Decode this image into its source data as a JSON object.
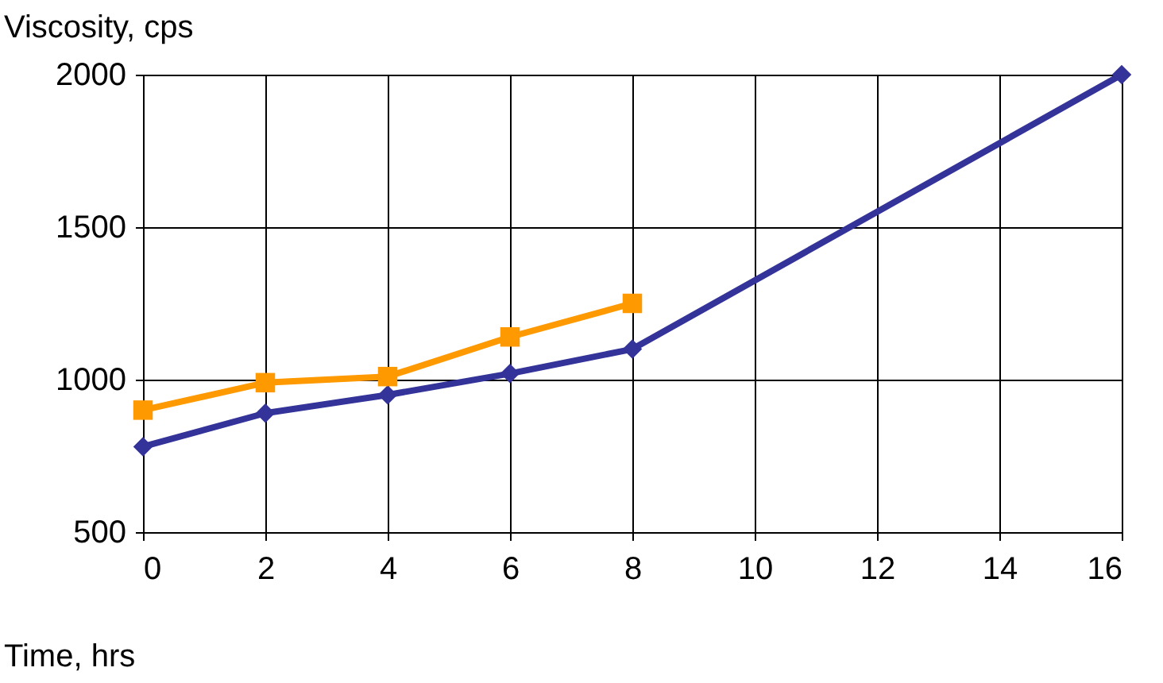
{
  "chart_data": {
    "type": "line",
    "xlabel": "Time, hrs",
    "ylabel": "Viscosity, cps",
    "xlim": [
      0,
      16
    ],
    "xticks": [
      0,
      2,
      4,
      6,
      8,
      10,
      12,
      14,
      16
    ],
    "ylim": [
      500,
      2000
    ],
    "yticks": [
      500,
      1000,
      1500,
      2000
    ],
    "grid": true,
    "line_style": "solid",
    "series": [
      {
        "color": "#333399",
        "marker": "diamond",
        "x": [
          0,
          2,
          4,
          6,
          8,
          16
        ],
        "values": [
          780,
          890,
          950,
          1020,
          1100,
          2000
        ]
      },
      {
        "color": "#ff9900",
        "marker": "square",
        "x": [
          0,
          2,
          4,
          6,
          8
        ],
        "values": [
          900,
          990,
          1010,
          1140,
          1250
        ]
      }
    ]
  }
}
